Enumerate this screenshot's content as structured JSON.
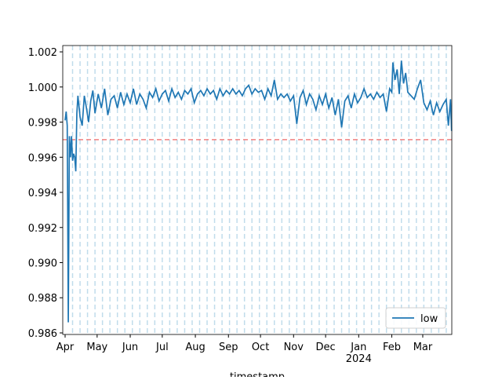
{
  "chart_data": {
    "type": "line",
    "xlabel": "timestamp",
    "x": [
      0,
      1,
      2,
      3,
      4,
      5,
      6,
      7,
      8,
      9,
      10,
      11,
      12,
      14,
      16,
      18,
      20,
      22,
      24,
      26,
      28,
      31,
      34,
      37,
      40,
      43,
      46,
      49,
      52,
      55,
      58,
      61,
      64,
      67,
      70,
      73,
      76,
      79,
      82,
      85,
      88,
      91,
      94,
      97,
      100,
      103,
      106,
      109,
      112,
      115,
      118,
      121,
      124,
      127,
      130,
      133,
      136,
      139,
      142,
      145,
      148,
      151,
      154,
      157,
      160,
      163,
      166,
      169,
      172,
      175,
      178,
      181,
      184,
      187,
      190,
      193,
      196,
      199,
      202,
      205,
      208,
      211,
      214,
      217,
      220,
      223,
      226,
      229,
      232,
      235,
      238,
      241,
      244,
      247,
      250,
      253,
      256,
      259,
      262,
      265,
      268,
      271,
      274,
      277,
      280,
      283,
      286,
      289,
      292,
      295,
      298,
      301,
      304,
      306,
      307,
      309,
      311,
      313,
      315,
      317,
      319,
      321,
      324,
      327,
      330,
      333,
      336,
      339,
      342,
      345,
      348,
      351,
      354,
      357,
      359,
      361,
      362
    ],
    "series": [
      {
        "name": "low",
        "color": "#1f77b4",
        "values": [
          0.9981,
          0.9986,
          0.9978,
          0.9866,
          0.9972,
          0.996,
          0.9972,
          0.9958,
          0.9962,
          0.996,
          0.9952,
          0.9985,
          0.9995,
          0.9983,
          0.9978,
          0.9995,
          0.9988,
          0.998,
          0.9992,
          0.9998,
          0.9985,
          0.9996,
          0.9988,
          0.9999,
          0.9984,
          0.9993,
          0.9995,
          0.9988,
          0.9997,
          0.999,
          0.9996,
          0.9991,
          0.9999,
          0.999,
          0.9996,
          0.9993,
          0.9988,
          0.9997,
          0.9994,
          0.9999,
          0.9992,
          0.9996,
          0.9998,
          0.9992,
          0.9999,
          0.9994,
          0.9997,
          0.9993,
          0.9998,
          0.9996,
          0.9999,
          0.9991,
          0.9996,
          0.9998,
          0.9995,
          0.9999,
          0.9996,
          0.9998,
          0.9993,
          0.9999,
          0.9995,
          0.9998,
          0.9996,
          0.9999,
          0.9996,
          0.9998,
          0.9995,
          0.9999,
          1.0001,
          0.9996,
          0.9999,
          0.9997,
          0.9998,
          0.9993,
          0.9999,
          0.9995,
          1.0004,
          0.9993,
          0.9996,
          0.9994,
          0.9996,
          0.9992,
          0.9995,
          0.9979,
          0.9994,
          0.9998,
          0.999,
          0.9996,
          0.9993,
          0.9987,
          0.9995,
          0.999,
          0.9996,
          0.9988,
          0.9994,
          0.9984,
          0.9993,
          0.9977,
          0.9992,
          0.9995,
          0.9988,
          0.9996,
          0.9991,
          0.9994,
          0.9999,
          0.9994,
          0.9996,
          0.9993,
          0.9997,
          0.9994,
          0.9996,
          0.9986,
          0.9999,
          0.9997,
          1.0014,
          1.0004,
          1.001,
          0.9996,
          1.0015,
          1.0002,
          1.0008,
          0.9997,
          0.9995,
          0.9993,
          0.9999,
          1.0004,
          0.9991,
          0.9987,
          0.9992,
          0.9984,
          0.9991,
          0.9986,
          0.999,
          0.9993,
          0.9978,
          0.9993,
          0.9975
        ]
      }
    ],
    "xlim": [
      -2.2,
      362.2
    ],
    "xticks": [
      {
        "value": 0,
        "label": "Apr"
      },
      {
        "value": 30,
        "label": "May"
      },
      {
        "value": 61,
        "label": "Jun"
      },
      {
        "value": 91,
        "label": "Jul"
      },
      {
        "value": 122,
        "label": "Aug"
      },
      {
        "value": 153,
        "label": "Sep"
      },
      {
        "value": 183,
        "label": "Oct"
      },
      {
        "value": 214,
        "label": "Nov"
      },
      {
        "value": 244,
        "label": "Dec"
      },
      {
        "value": 275,
        "label": "Jan\n2024"
      },
      {
        "value": 306,
        "label": "Feb"
      },
      {
        "value": 335,
        "label": "Mar"
      }
    ],
    "ylim": [
      0.98591,
      1.00236
    ],
    "yticks": [
      0.986,
      0.988,
      {
        "value": 0.99,
        "label": "0.990"
      },
      0.992,
      0.994,
      0.996,
      0.998,
      {
        "value": 1,
        "label": "1.000"
      },
      1.002
    ],
    "hline": {
      "value": 0.997,
      "color": "#f08080"
    },
    "vlines": {
      "color": "#a6cee3",
      "x": [
        7,
        14,
        21,
        28,
        35,
        42,
        49,
        56,
        63,
        70,
        77,
        84,
        91,
        98,
        105,
        112,
        119,
        126,
        133,
        140,
        147,
        154,
        161,
        168,
        175,
        182,
        189,
        196,
        203,
        210,
        217,
        224,
        231,
        238,
        245,
        252,
        259,
        266,
        273,
        280,
        287,
        294,
        301,
        308,
        315,
        322,
        329,
        336,
        343,
        350,
        357
      ]
    },
    "legend": "lower right"
  }
}
